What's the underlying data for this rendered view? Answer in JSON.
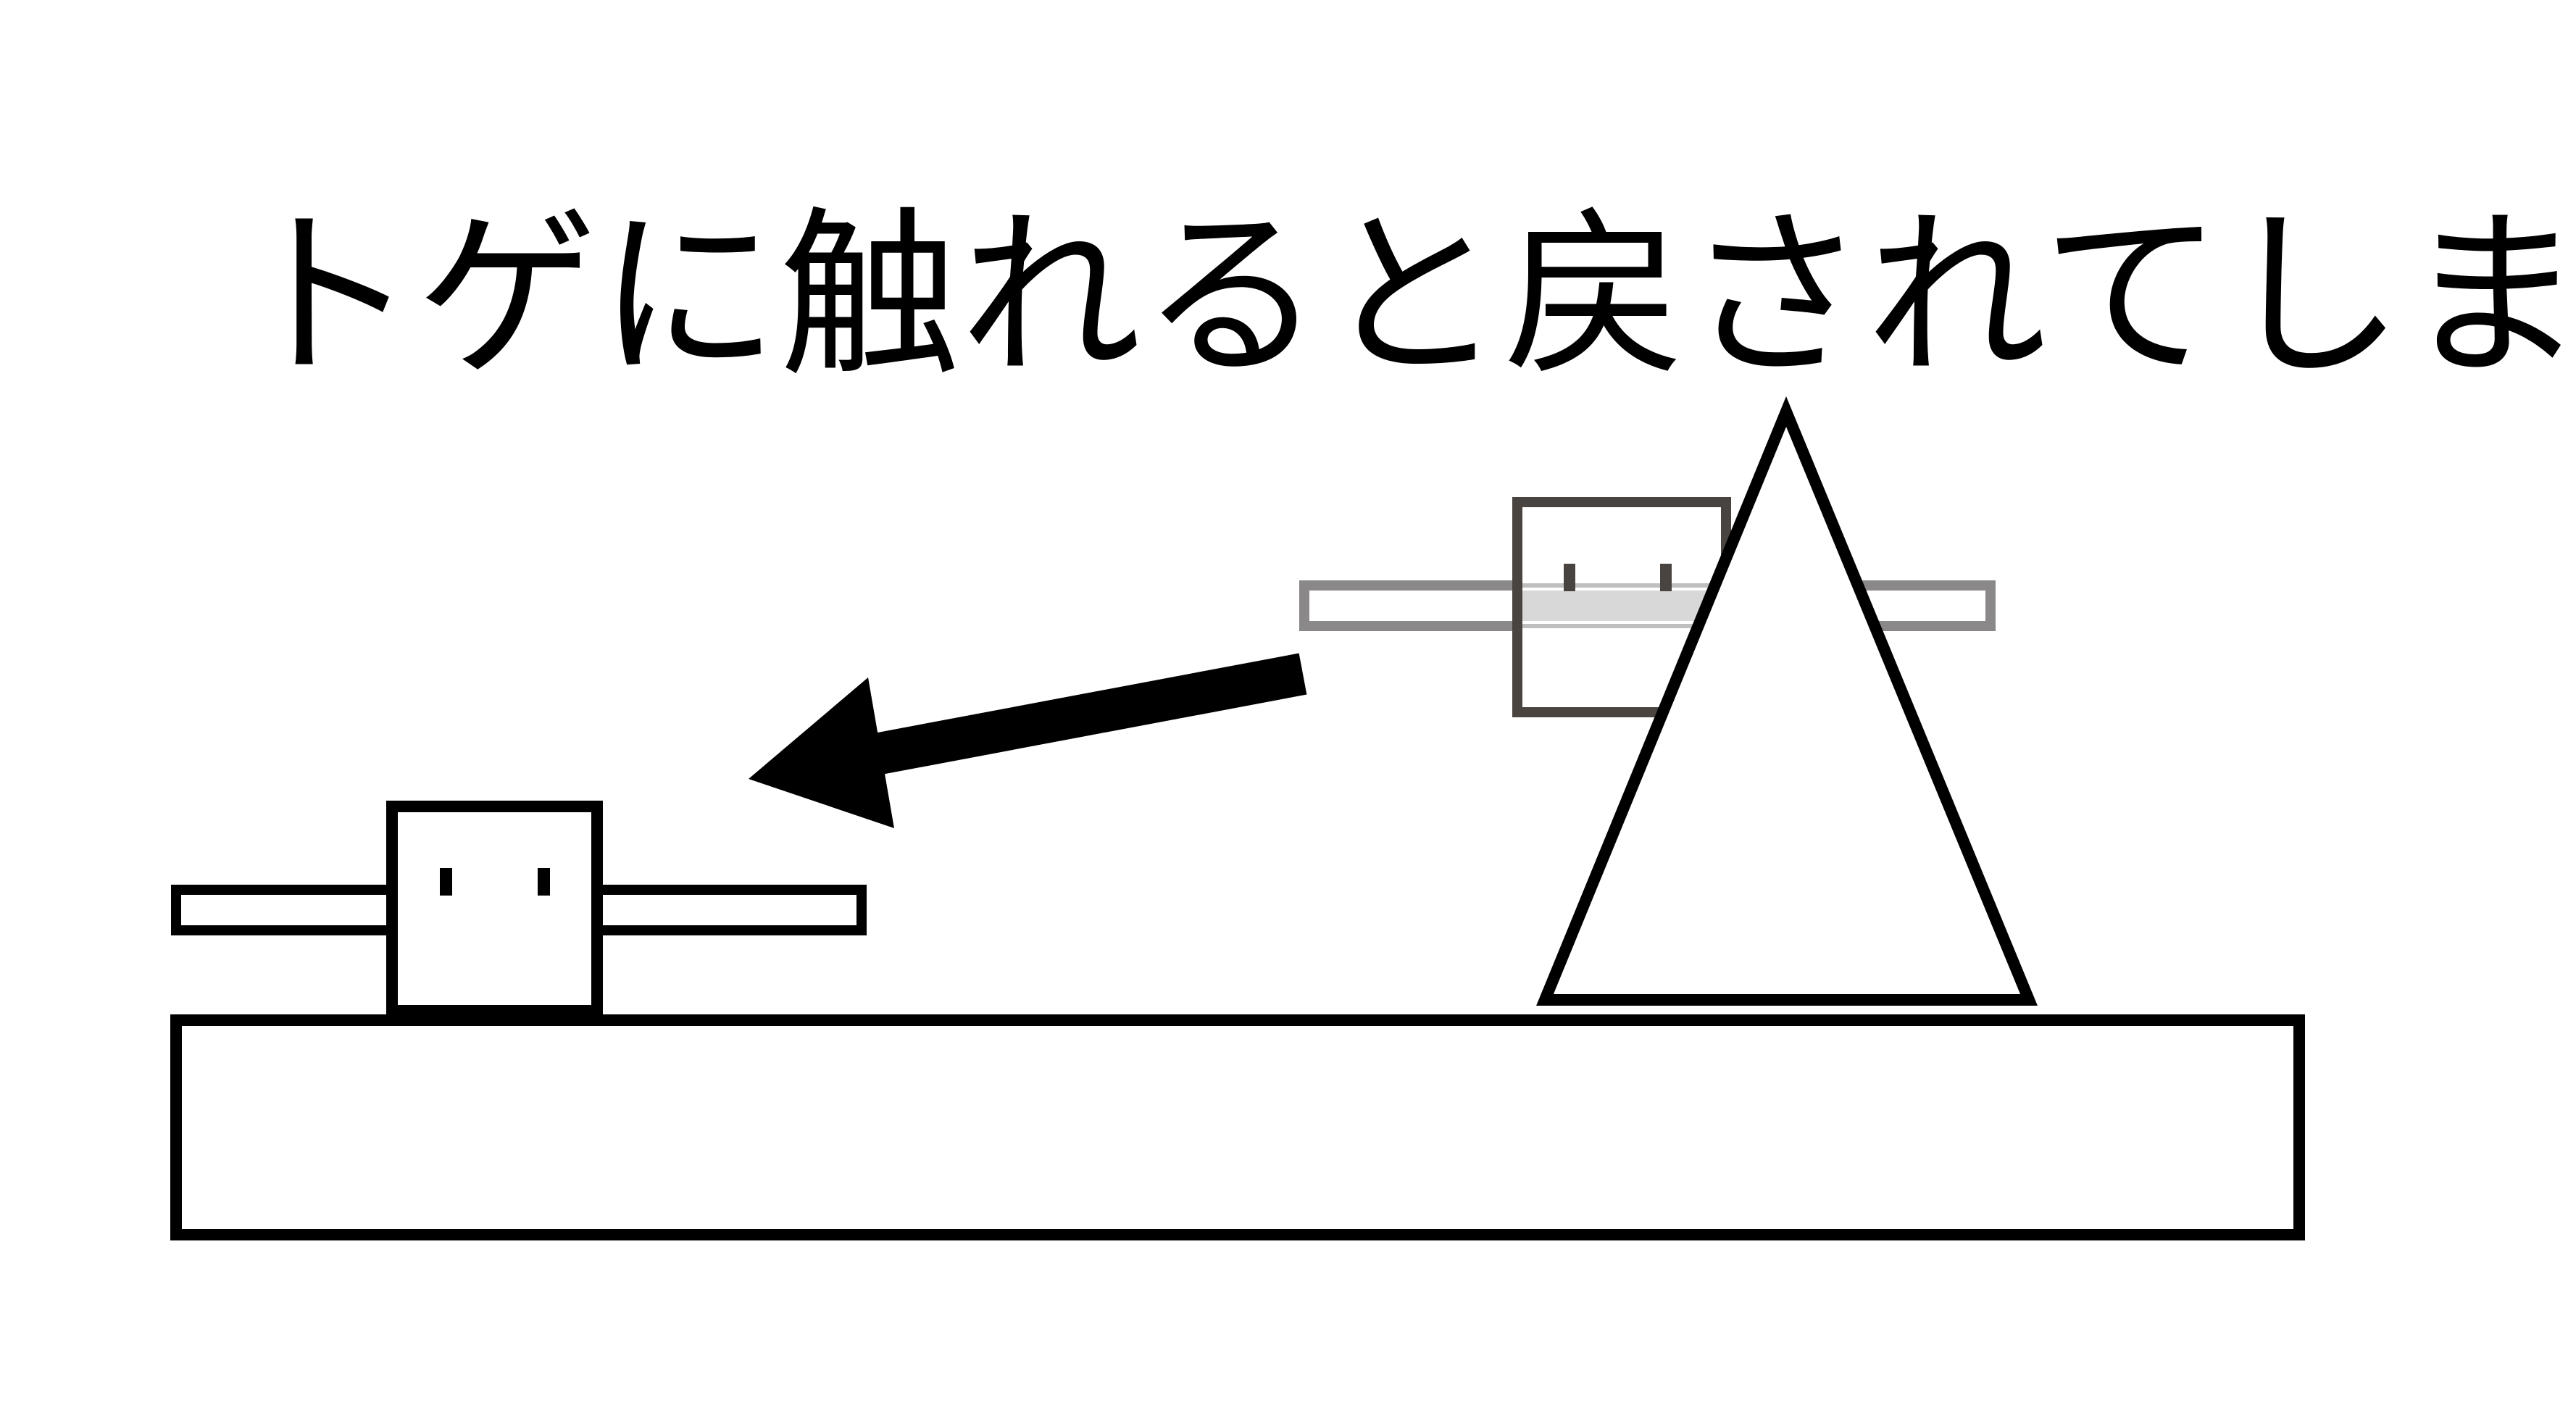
{
  "caption": "トゲに触れると戻されてしまう",
  "colors": {
    "background": "#ffffff",
    "ink": "#000000",
    "ghost_body": "#4a4440",
    "ghost_arms": "#8a8888",
    "ghost_fill": "#d8d8d8"
  },
  "elements": {
    "ground": "ground-platform",
    "spike": "spike-triangle",
    "player": "player-character",
    "ghost_player": "player-ghost-previous-position",
    "arrow": "knockback-arrow"
  }
}
